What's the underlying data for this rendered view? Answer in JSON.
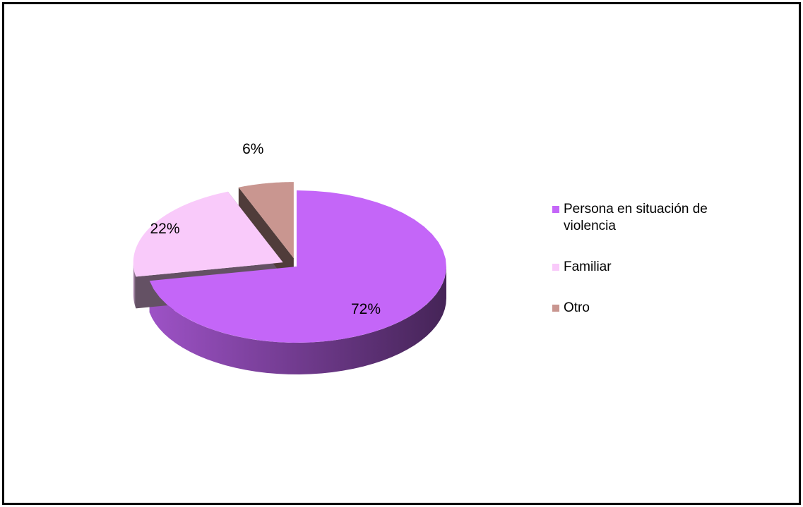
{
  "chart_data": {
    "type": "pie3d",
    "categories": [
      "Persona en situación de violencia",
      "Familiar",
      "Otro"
    ],
    "values": [
      72,
      22,
      6
    ],
    "value_labels": [
      "72%",
      "22%",
      "6%"
    ],
    "colors": [
      "#c466f8",
      "#f9cafa",
      "#c99690"
    ],
    "legend": "right"
  }
}
